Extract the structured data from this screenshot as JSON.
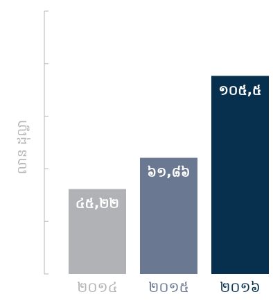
{
  "chart_data": {
    "type": "bar",
    "categories": [
      "២០១៤",
      "២០១៥",
      "២០១៦"
    ],
    "values": [
      45.22,
      61.86,
      105.5
    ],
    "value_labels": [
      "៤៥,២២",
      "៦១,៨៦",
      "១០៥,៥"
    ],
    "ylabel": "លាន ដុល្លា",
    "ylim": [
      0,
      140
    ],
    "grid": false,
    "legend": "none",
    "colors": {
      "bars": [
        "#b1b2b5",
        "#6b7891",
        "#07304f"
      ],
      "category_labels": [
        "#b1b2b5",
        "#6b7891",
        "#07304f"
      ],
      "value_label": "#ffffff",
      "ylabel": "#b5b5b5",
      "axis": "#b5b5b5"
    }
  }
}
